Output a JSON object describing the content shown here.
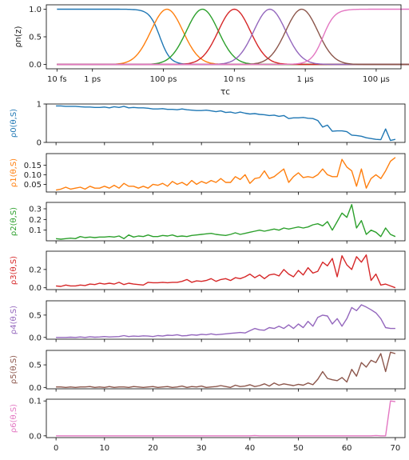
{
  "colors": [
    "#1f77b4",
    "#ff7f0e",
    "#2ca02c",
    "#d62728",
    "#9467bd",
    "#8c564b",
    "#e377c2"
  ],
  "chart_data": [
    {
      "type": "line",
      "title": "",
      "xlabel": "τc",
      "ylabel": "ρn(z)",
      "xscale": "log",
      "xlim_log10_s": [
        -13.3,
        -3.3
      ],
      "ylim": [
        0,
        1
      ],
      "xticks": [
        {
          "value_log10_s": -13,
          "label": "10 fs"
        },
        {
          "value_log10_s": -12,
          "label": "1 ps"
        },
        {
          "value_log10_s": -10,
          "label": "100 ps"
        },
        {
          "value_log10_s": -8,
          "label": "10 ns"
        },
        {
          "value_log10_s": -6,
          "label": "1 μs"
        },
        {
          "value_log10_s": -4,
          "label": "100 μs"
        }
      ],
      "yticks": [
        "0.0",
        "0.5",
        "1.0"
      ],
      "series": [
        {
          "color_index": 0,
          "kind": "low-pass",
          "center_log10_s": -10.1,
          "width": 0.32
        },
        {
          "color_index": 1,
          "kind": "bump",
          "center_log10_s": -9.9,
          "width": 0.45
        },
        {
          "color_index": 2,
          "kind": "bump",
          "center_log10_s": -8.9,
          "width": 0.45
        },
        {
          "color_index": 3,
          "kind": "bump",
          "center_log10_s": -8.0,
          "width": 0.45
        },
        {
          "color_index": 4,
          "kind": "bump",
          "center_log10_s": -7.0,
          "width": 0.45
        },
        {
          "color_index": 5,
          "kind": "bump",
          "center_log10_s": -6.1,
          "width": 0.45
        },
        {
          "color_index": 6,
          "kind": "high-pass",
          "center_log10_s": -5.5,
          "width": 0.36
        }
      ]
    },
    {
      "type": "line",
      "stacked_panels": true,
      "xlim": [
        -2,
        72
      ],
      "xticks": [
        0,
        10,
        20,
        30,
        40,
        50,
        60,
        70
      ],
      "panels": [
        {
          "ylabel": "ρ0(θ,S)",
          "color_index": 0,
          "ylim": [
            0,
            1
          ],
          "yticks": [
            "1",
            "0"
          ],
          "values": [
            0.95,
            0.95,
            0.94,
            0.94,
            0.94,
            0.93,
            0.92,
            0.92,
            0.91,
            0.91,
            0.92,
            0.9,
            0.93,
            0.91,
            0.94,
            0.9,
            0.91,
            0.9,
            0.9,
            0.89,
            0.87,
            0.87,
            0.88,
            0.86,
            0.86,
            0.85,
            0.87,
            0.85,
            0.84,
            0.83,
            0.83,
            0.84,
            0.82,
            0.8,
            0.82,
            0.78,
            0.79,
            0.76,
            0.79,
            0.76,
            0.74,
            0.75,
            0.73,
            0.72,
            0.7,
            0.71,
            0.68,
            0.7,
            0.62,
            0.64,
            0.64,
            0.65,
            0.63,
            0.62,
            0.57,
            0.4,
            0.45,
            0.29,
            0.3,
            0.3,
            0.28,
            0.19,
            0.18,
            0.16,
            0.12,
            0.1,
            0.08,
            0.07,
            0.35,
            0.05,
            0.08
          ]
        },
        {
          "ylabel": "ρ1(θ,S)",
          "color_index": 1,
          "ylim": [
            0.01,
            0.21
          ],
          "yticks": [
            "0.15",
            "0.10",
            "0.05"
          ],
          "values": [
            0.02,
            0.025,
            0.035,
            0.025,
            0.03,
            0.035,
            0.025,
            0.04,
            0.03,
            0.03,
            0.04,
            0.03,
            0.045,
            0.03,
            0.055,
            0.04,
            0.04,
            0.03,
            0.04,
            0.03,
            0.05,
            0.045,
            0.055,
            0.04,
            0.065,
            0.05,
            0.06,
            0.045,
            0.07,
            0.05,
            0.065,
            0.055,
            0.07,
            0.06,
            0.08,
            0.06,
            0.06,
            0.09,
            0.075,
            0.1,
            0.055,
            0.08,
            0.085,
            0.12,
            0.08,
            0.09,
            0.11,
            0.13,
            0.06,
            0.09,
            0.11,
            0.085,
            0.09,
            0.085,
            0.1,
            0.13,
            0.1,
            0.09,
            0.09,
            0.18,
            0.14,
            0.12,
            0.04,
            0.13,
            0.03,
            0.08,
            0.1,
            0.08,
            0.12,
            0.17,
            0.19
          ]
        },
        {
          "ylabel": "ρ2(θ,S)",
          "color_index": 2,
          "ylim": [
            0,
            0.36
          ],
          "yticks": [
            "0.3",
            "0.2",
            "0.1"
          ],
          "values": [
            0.02,
            0.015,
            0.02,
            0.025,
            0.02,
            0.04,
            0.03,
            0.035,
            0.03,
            0.035,
            0.035,
            0.04,
            0.035,
            0.045,
            0.02,
            0.055,
            0.035,
            0.045,
            0.04,
            0.055,
            0.04,
            0.04,
            0.05,
            0.045,
            0.055,
            0.04,
            0.045,
            0.04,
            0.05,
            0.055,
            0.06,
            0.065,
            0.07,
            0.06,
            0.055,
            0.05,
            0.06,
            0.075,
            0.06,
            0.07,
            0.08,
            0.09,
            0.1,
            0.09,
            0.1,
            0.11,
            0.1,
            0.12,
            0.11,
            0.12,
            0.13,
            0.12,
            0.13,
            0.15,
            0.16,
            0.14,
            0.18,
            0.1,
            0.18,
            0.26,
            0.22,
            0.34,
            0.12,
            0.19,
            0.06,
            0.1,
            0.08,
            0.04,
            0.12,
            0.06,
            0.04
          ]
        },
        {
          "ylabel": "ρ3(θ,S)",
          "color_index": 3,
          "ylim": [
            -0.02,
            0.4
          ],
          "yticks": [
            "0.2",
            "0.0"
          ],
          "values": [
            0.02,
            0.015,
            0.03,
            0.02,
            0.02,
            0.03,
            0.025,
            0.04,
            0.035,
            0.05,
            0.04,
            0.05,
            0.04,
            0.06,
            0.035,
            0.05,
            0.04,
            0.035,
            0.03,
            0.06,
            0.055,
            0.055,
            0.06,
            0.055,
            0.06,
            0.06,
            0.07,
            0.09,
            0.06,
            0.075,
            0.07,
            0.08,
            0.1,
            0.07,
            0.09,
            0.1,
            0.08,
            0.11,
            0.1,
            0.12,
            0.15,
            0.11,
            0.14,
            0.1,
            0.14,
            0.15,
            0.13,
            0.2,
            0.15,
            0.12,
            0.19,
            0.14,
            0.22,
            0.16,
            0.18,
            0.28,
            0.24,
            0.32,
            0.12,
            0.35,
            0.25,
            0.2,
            0.34,
            0.28,
            0.36,
            0.08,
            0.15,
            0.03,
            0.04,
            0.02,
            0.0
          ]
        },
        {
          "ylabel": "ρ4(θ,S)",
          "color_index": 4,
          "ylim": [
            -0.04,
            0.82
          ],
          "yticks": [
            "0.5",
            "0.0"
          ],
          "values": [
            0.0,
            0.0,
            0.0,
            0.005,
            0.0,
            0.01,
            0.0,
            0.015,
            0.005,
            0.01,
            0.02,
            0.01,
            0.015,
            0.02,
            0.04,
            0.02,
            0.03,
            0.025,
            0.035,
            0.03,
            0.02,
            0.04,
            0.03,
            0.05,
            0.045,
            0.06,
            0.035,
            0.04,
            0.06,
            0.05,
            0.07,
            0.06,
            0.08,
            0.06,
            0.07,
            0.08,
            0.09,
            0.1,
            0.11,
            0.1,
            0.15,
            0.2,
            0.17,
            0.16,
            0.22,
            0.2,
            0.25,
            0.2,
            0.28,
            0.2,
            0.3,
            0.22,
            0.36,
            0.25,
            0.45,
            0.5,
            0.48,
            0.3,
            0.42,
            0.25,
            0.42,
            0.67,
            0.6,
            0.73,
            0.68,
            0.62,
            0.55,
            0.42,
            0.22,
            0.2,
            0.2
          ]
        },
        {
          "ylabel": "ρ5(θ,S)",
          "color_index": 5,
          "ylim": [
            -0.03,
            0.82
          ],
          "yticks": [
            "0.5",
            "0.0"
          ],
          "values": [
            0.01,
            0.01,
            0.0,
            0.01,
            0.0,
            0.01,
            0.01,
            0.02,
            0.0,
            0.01,
            0.0,
            0.02,
            0.0,
            0.01,
            0.01,
            0.0,
            0.02,
            0.01,
            0.0,
            0.01,
            0.02,
            0.0,
            0.01,
            0.02,
            0.0,
            0.01,
            0.03,
            0.0,
            0.02,
            0.01,
            0.03,
            0.0,
            0.01,
            0.02,
            0.04,
            0.02,
            0.0,
            0.05,
            0.02,
            0.03,
            0.06,
            0.02,
            0.04,
            0.08,
            0.03,
            0.1,
            0.05,
            0.08,
            0.06,
            0.04,
            0.07,
            0.05,
            0.1,
            0.06,
            0.18,
            0.35,
            0.2,
            0.17,
            0.15,
            0.22,
            0.12,
            0.4,
            0.25,
            0.55,
            0.45,
            0.6,
            0.55,
            0.75,
            0.35,
            0.78,
            0.75
          ]
        },
        {
          "ylabel": "ρ6(θ,S)",
          "color_index": 6,
          "ylim": [
            -0.005,
            0.105
          ],
          "yticks": [
            "0.1",
            "0.0"
          ],
          "values": [
            0.0,
            0.0,
            0.0,
            0.0,
            0.0,
            0.0,
            0.0,
            0.0,
            0.0,
            0.0,
            0.0,
            0.0,
            0.0,
            0.0,
            0.0,
            0.0,
            0.0,
            0.0,
            0.0,
            0.0,
            0.0,
            0.0,
            0.0,
            0.0,
            0.0,
            0.0,
            0.0,
            0.0,
            0.0,
            0.0,
            0.0,
            0.0,
            0.0,
            0.0,
            0.0,
            0.0,
            0.0,
            0.0,
            0.0,
            0.0,
            0.0,
            0.001,
            0.0,
            0.0,
            0.0,
            0.0,
            0.0,
            0.0,
            0.0,
            0.0,
            0.0,
            0.0,
            0.0,
            0.0,
            0.0,
            0.0,
            0.0,
            0.0,
            0.0,
            0.0,
            0.0,
            0.0,
            0.0,
            0.0,
            0.0,
            0.0,
            0.001,
            0.0,
            0.0,
            0.1,
            0.098
          ]
        }
      ]
    }
  ]
}
